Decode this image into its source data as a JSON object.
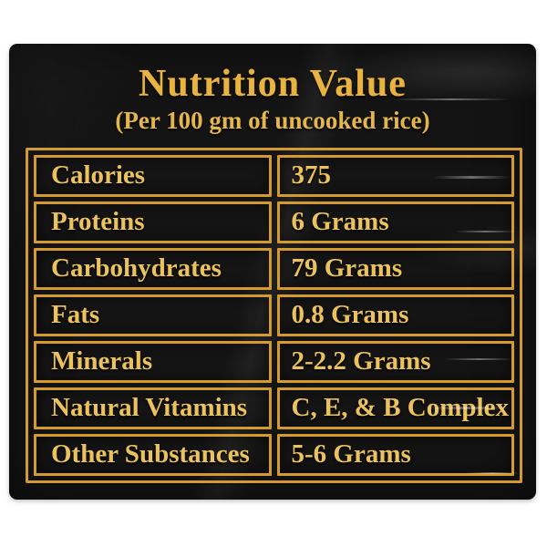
{
  "label": {
    "title": "Nutrition Value",
    "subtitle": "(Per 100 gm of uncooked rice)",
    "rows": [
      {
        "name": "Calories",
        "value": "375"
      },
      {
        "name": "Proteins",
        "value": "6 Grams"
      },
      {
        "name": "Carbohydrates",
        "value": "79 Grams"
      },
      {
        "name": "Fats",
        "value": "0.8 Grams"
      },
      {
        "name": "Minerals",
        "value": "2-2.2 Grams"
      },
      {
        "name": "Natural Vitamins",
        "value": "C, E, & B Complex"
      },
      {
        "name": "Other Substances",
        "value": "5-6 Grams"
      }
    ],
    "colors": {
      "gold_border": "#d59a2e",
      "gold_text": "#ecc25e",
      "title_gold": "#e9b342",
      "package_black": "#141414",
      "page_background": "#ffffff"
    }
  }
}
